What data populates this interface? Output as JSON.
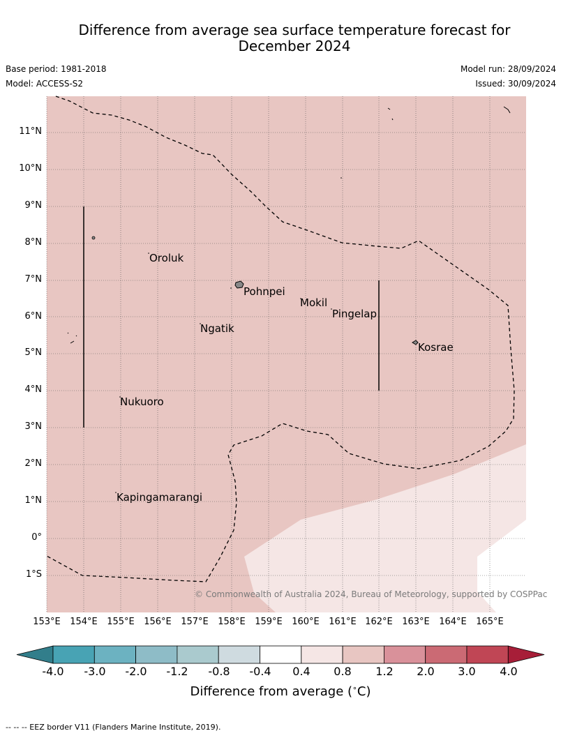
{
  "title_line1": "Difference from average sea surface temperature forecast for",
  "title_line2": "December 2024",
  "base_period": "Base period: 1981-2018",
  "model": "Model: ACCESS-S2",
  "model_run": "Model run: 28/09/2024",
  "issued": "Issued: 30/09/2024",
  "map": {
    "lat_labels": [
      "11°N",
      "10°N",
      "9°N",
      "8°N",
      "7°N",
      "6°N",
      "5°N",
      "4°N",
      "3°N",
      "2°N",
      "1°N",
      "0°",
      "1°S"
    ],
    "lon_labels": [
      "153°E",
      "154°E",
      "155°E",
      "156°E",
      "157°E",
      "158°E",
      "159°E",
      "160°E",
      "161°E",
      "162°E",
      "163°E",
      "164°E",
      "165°E"
    ],
    "places": [
      {
        "name": "Oroluk"
      },
      {
        "name": "Pohnpei"
      },
      {
        "name": "Mokil"
      },
      {
        "name": "Pingelap"
      },
      {
        "name": "Ngatik"
      },
      {
        "name": "Kosrae"
      },
      {
        "name": "Nukuoro"
      },
      {
        "name": "Kapingamarangi"
      }
    ],
    "copyright": "© Commonwealth of Australia 2024, Bureau of Meteorology, supported by COSPPac",
    "colors": {
      "c_0_8_1_2": "#e8c6c2",
      "c_0_4_0_8": "#f5e6e5",
      "c_m04_04": "#ffffff"
    }
  },
  "colorbar": {
    "labels": [
      "-4.0",
      "-3.0",
      "-2.0",
      "-1.2",
      "-0.8",
      "-0.4",
      "0.4",
      "0.8",
      "1.2",
      "2.0",
      "3.0",
      "4.0"
    ],
    "colors": [
      "#327e8b",
      "#48a3b4",
      "#6cb2c1",
      "#8ebcc7",
      "#aacace",
      "#cfdbe0",
      "#ffffff",
      "#f5e6e5",
      "#e8c6c2",
      "#d9919a",
      "#cb6a74",
      "#c04655",
      "#a71e38"
    ],
    "title": "Difference from average (",
    "title_unit": "C)"
  },
  "footnote": "--  --  -- EEZ border V11 (Flanders Marine Institute, 2019)."
}
